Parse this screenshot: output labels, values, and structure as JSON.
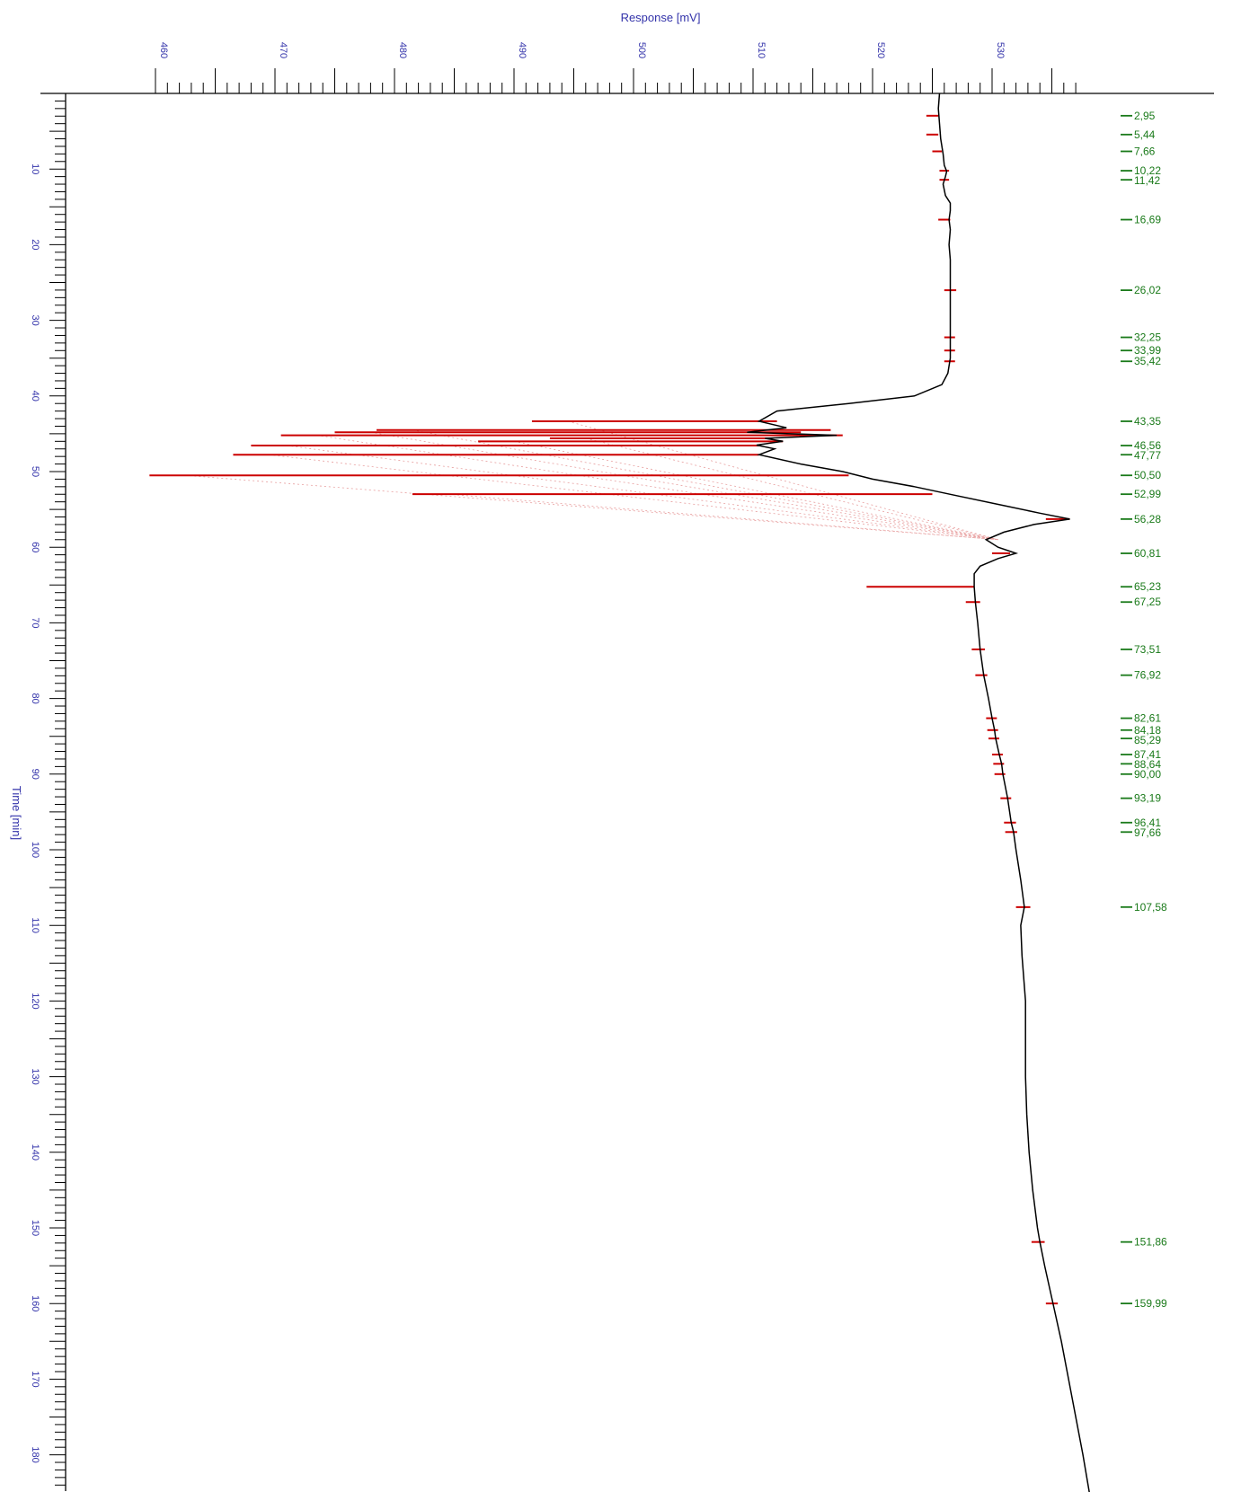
{
  "chart_data": {
    "type": "line",
    "orientation": "vertical",
    "xlabel": "Response [mV]",
    "ylabel": "Time [min]",
    "xlim": [
      452,
      537
    ],
    "ylim": [
      0,
      186.5
    ],
    "x_ticks": [
      460,
      470,
      480,
      490,
      500,
      510,
      520,
      530
    ],
    "y_ticks": [
      10,
      20,
      30,
      40,
      50,
      60,
      70,
      80,
      90,
      100,
      110,
      120,
      130,
      140,
      150,
      160,
      170,
      180
    ],
    "colors": {
      "trace": "#000000",
      "peak_marker": "#cc0000",
      "retention_label": "#1a7a1a",
      "axis_text": "#3333aa",
      "baseline": "#e8a0a0"
    },
    "trace": [
      [
        0,
        525.6
      ],
      [
        2,
        525.5
      ],
      [
        4,
        525.6
      ],
      [
        6,
        525.7
      ],
      [
        8,
        525.9
      ],
      [
        9.5,
        526.0
      ],
      [
        10.3,
        526.2
      ],
      [
        11,
        526.1
      ],
      [
        12,
        525.9
      ],
      [
        13.5,
        526.1
      ],
      [
        14.5,
        526.5
      ],
      [
        15.5,
        526.5
      ],
      [
        16.7,
        526.4
      ],
      [
        18,
        526.5
      ],
      [
        20,
        526.4
      ],
      [
        22,
        526.5
      ],
      [
        26,
        526.5
      ],
      [
        30,
        526.5
      ],
      [
        33,
        526.5
      ],
      [
        35,
        526.5
      ],
      [
        37,
        526.3
      ],
      [
        38.5,
        525.8
      ],
      [
        40,
        523.5
      ],
      [
        41,
        518
      ],
      [
        42,
        512
      ],
      [
        43.35,
        510.5
      ],
      [
        44.2,
        512.8
      ],
      [
        44.8,
        509.5
      ],
      [
        45.2,
        517.0
      ],
      [
        45.6,
        511.0
      ],
      [
        46.0,
        512.5
      ],
      [
        46.5,
        510.3
      ],
      [
        47.0,
        511.8
      ],
      [
        47.77,
        510.5
      ],
      [
        49.0,
        514.0
      ],
      [
        50.0,
        517.5
      ],
      [
        51.0,
        520.0
      ],
      [
        52.0,
        523.5
      ],
      [
        53.0,
        526.5
      ],
      [
        54.5,
        531.0
      ],
      [
        55.5,
        534.0
      ],
      [
        56.28,
        536.5
      ],
      [
        57.0,
        533.5
      ],
      [
        58.0,
        531.0
      ],
      [
        59.0,
        529.5
      ],
      [
        60.0,
        530.5
      ],
      [
        60.81,
        532.0
      ],
      [
        61.5,
        530.5
      ],
      [
        62.5,
        529.0
      ],
      [
        63.5,
        528.5
      ],
      [
        65.23,
        528.5
      ],
      [
        67.25,
        528.6
      ],
      [
        70,
        528.8
      ],
      [
        73.51,
        529.0
      ],
      [
        76.92,
        529.3
      ],
      [
        80,
        529.7
      ],
      [
        82.61,
        530.0
      ],
      [
        84.16,
        530.2
      ],
      [
        85.29,
        530.3
      ],
      [
        87.41,
        530.6
      ],
      [
        88.64,
        530.8
      ],
      [
        90.0,
        530.9
      ],
      [
        93.19,
        531.3
      ],
      [
        96.41,
        531.6
      ],
      [
        97.66,
        531.8
      ],
      [
        100,
        532.0
      ],
      [
        104,
        532.4
      ],
      [
        107.58,
        532.7
      ],
      [
        110,
        532.4
      ],
      [
        114,
        532.5
      ],
      [
        120,
        532.8
      ],
      [
        125,
        532.8
      ],
      [
        130,
        532.8
      ],
      [
        135,
        532.9
      ],
      [
        140,
        533.1
      ],
      [
        145,
        533.4
      ],
      [
        150,
        533.8
      ],
      [
        151.86,
        534.0
      ],
      [
        155,
        534.4
      ],
      [
        159.99,
        535.1
      ],
      [
        165,
        535.8
      ],
      [
        170,
        536.4
      ],
      [
        175,
        537.0
      ],
      [
        180,
        537.6
      ],
      [
        186.5,
        538.3
      ]
    ],
    "peaks": [
      {
        "rt": 2.95,
        "label": "2,95",
        "from": 524.5,
        "to": 525.5
      },
      {
        "rt": 5.44,
        "label": "5,44",
        "from": 524.5,
        "to": 525.5
      },
      {
        "rt": 7.66,
        "label": "7,66",
        "from": 525.0,
        "to": 525.8
      },
      {
        "rt": 10.22,
        "label": "10,22",
        "from": 525.6,
        "to": 526.4
      },
      {
        "rt": 11.42,
        "label": "11,42",
        "from": 525.6,
        "to": 526.4
      },
      {
        "rt": 16.69,
        "label": "16,69",
        "from": 525.5,
        "to": 526.5
      },
      {
        "rt": 26.02,
        "label": "26,02",
        "from": 526.0,
        "to": 527.0
      },
      {
        "rt": 32.25,
        "label": "32,25",
        "from": 526.0,
        "to": 526.9
      },
      {
        "rt": 33.99,
        "label": "33,99",
        "from": 526.0,
        "to": 526.9
      },
      {
        "rt": 35.42,
        "label": "35,42",
        "from": 526.0,
        "to": 526.9
      },
      {
        "rt": 43.35,
        "label": "43,35",
        "from": 491.5,
        "to": 512.0
      },
      {
        "rt": 44.5,
        "label": "",
        "from": 478.5,
        "to": 516.5
      },
      {
        "rt": 44.8,
        "label": "",
        "from": 475.0,
        "to": 514.0
      },
      {
        "rt": 45.2,
        "label": "",
        "from": 470.5,
        "to": 517.5
      },
      {
        "rt": 45.6,
        "label": "",
        "from": 493.0,
        "to": 511.5
      },
      {
        "rt": 46.0,
        "label": "",
        "from": 487.0,
        "to": 512.5
      },
      {
        "rt": 46.56,
        "label": "46,56",
        "from": 468.0,
        "to": 510.5
      },
      {
        "rt": 47.77,
        "label": "47,77",
        "from": 466.5,
        "to": 510.5
      },
      {
        "rt": 50.5,
        "label": "50,50",
        "from": 459.5,
        "to": 518.0
      },
      {
        "rt": 52.99,
        "label": "52,99",
        "from": 481.5,
        "to": 525.0
      },
      {
        "rt": 56.28,
        "label": "56,28",
        "from": 534.5,
        "to": 536.5
      },
      {
        "rt": 60.81,
        "label": "60,81",
        "from": 530.0,
        "to": 531.5
      },
      {
        "rt": 65.23,
        "label": "65,23",
        "from": 519.5,
        "to": 528.5
      },
      {
        "rt": 67.25,
        "label": "67,25",
        "from": 527.8,
        "to": 529.0
      },
      {
        "rt": 73.51,
        "label": "73,51",
        "from": 528.3,
        "to": 529.4
      },
      {
        "rt": 76.92,
        "label": "76,92",
        "from": 528.6,
        "to": 529.6
      },
      {
        "rt": 82.61,
        "label": "82,61",
        "from": 529.5,
        "to": 530.4
      },
      {
        "rt": 84.18,
        "label": "84,18",
        "from": 529.6,
        "to": 530.5
      },
      {
        "rt": 85.29,
        "label": "85,29",
        "from": 529.7,
        "to": 530.6
      },
      {
        "rt": 87.41,
        "label": "87,41",
        "from": 530.0,
        "to": 530.9
      },
      {
        "rt": 88.64,
        "label": "88,64",
        "from": 530.1,
        "to": 531.0
      },
      {
        "rt": 90.0,
        "label": "90,00",
        "from": 530.2,
        "to": 531.1
      },
      {
        "rt": 93.19,
        "label": "93,19",
        "from": 530.7,
        "to": 531.6
      },
      {
        "rt": 96.41,
        "label": "96,41",
        "from": 531.0,
        "to": 532.0
      },
      {
        "rt": 97.66,
        "label": "97,66",
        "from": 531.1,
        "to": 532.1
      },
      {
        "rt": 107.58,
        "label": "107,58",
        "from": 532.0,
        "to": 533.2
      },
      {
        "rt": 151.86,
        "label": "151,86",
        "from": 533.3,
        "to": 534.4
      },
      {
        "rt": 159.99,
        "label": "159,99",
        "from": 534.5,
        "to": 535.5
      }
    ]
  }
}
